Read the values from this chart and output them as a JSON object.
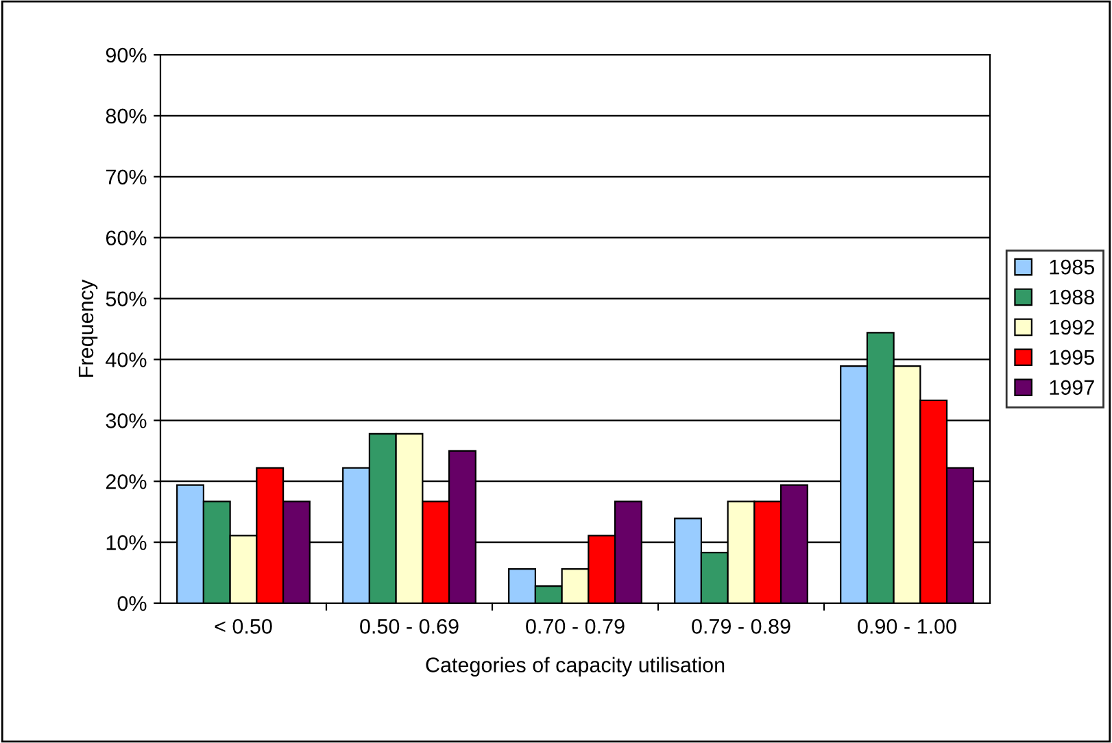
{
  "chart_data": {
    "type": "bar",
    "xlabel": "Categories of capacity utilisation",
    "ylabel": "Frequency",
    "categories": [
      "< 0.50",
      "0.50 - 0.69",
      "0.70 - 0.79",
      "0.79 - 0.89",
      "0.90 - 1.00"
    ],
    "series": [
      {
        "name": "1985",
        "color": "#99ccff",
        "values": [
          19.4,
          22.2,
          5.6,
          13.9,
          38.9
        ]
      },
      {
        "name": "1988",
        "color": "#339966",
        "values": [
          16.7,
          27.8,
          2.8,
          8.3,
          44.4
        ]
      },
      {
        "name": "1992",
        "color": "#ffffcc",
        "values": [
          11.1,
          27.8,
          5.6,
          16.7,
          38.9
        ]
      },
      {
        "name": "1995",
        "color": "#ff0000",
        "values": [
          22.2,
          16.7,
          11.1,
          16.7,
          33.3
        ]
      },
      {
        "name": "1997",
        "color": "#660066",
        "values": [
          16.7,
          25.0,
          16.7,
          19.4,
          22.2
        ]
      }
    ],
    "ylim": [
      0,
      90
    ],
    "yticks": [
      {
        "value": 0,
        "label": "0%"
      },
      {
        "value": 10,
        "label": "10%"
      },
      {
        "value": 20,
        "label": "20%"
      },
      {
        "value": 30,
        "label": "30%"
      },
      {
        "value": 40,
        "label": "40%"
      },
      {
        "value": 50,
        "label": "50%"
      },
      {
        "value": 60,
        "label": "60%"
      },
      {
        "value": 70,
        "label": "70%"
      },
      {
        "value": 80,
        "label": "80%"
      },
      {
        "value": 90,
        "label": "90%"
      }
    ],
    "grid": "y",
    "legend": "right"
  }
}
